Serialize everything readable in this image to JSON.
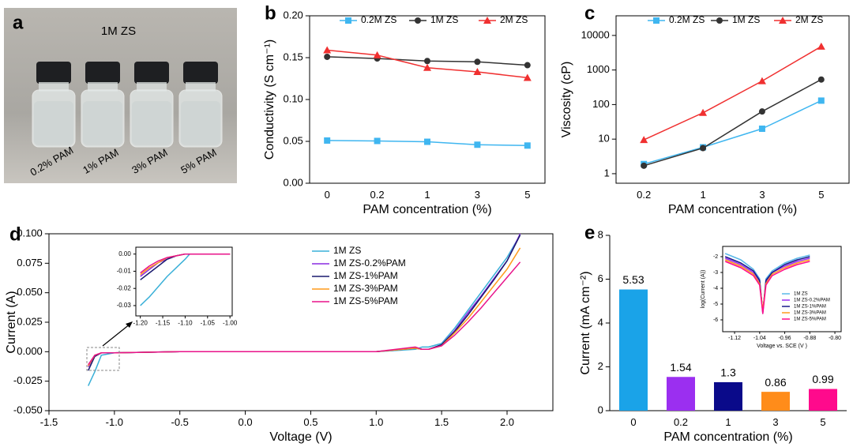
{
  "chart_data": [
    {
      "type": "photo",
      "panel_label": "a",
      "title": "1M ZS",
      "labels": [
        "0.2% PAM",
        "1% PAM",
        "3% PAM",
        "5% PAM"
      ]
    },
    {
      "type": "line",
      "panel_label": "b",
      "xlabel": "PAM concentration (%)",
      "ylabel": "Conductivity (S cm⁻¹)",
      "categories": [
        "0",
        "0.2",
        "1",
        "3",
        "5"
      ],
      "ylim": [
        0,
        0.2
      ],
      "yticks": [
        {
          "value": 0,
          "label": "0.00"
        },
        {
          "value": 0.05,
          "label": "0.05"
        },
        {
          "value": 0.1,
          "label": "0.10"
        },
        {
          "value": 0.15,
          "label": "0.15"
        },
        {
          "value": 0.2,
          "label": "0.20"
        }
      ],
      "series": [
        {
          "name": "0.2M ZS",
          "color": "#3fb6f0",
          "marker": "square",
          "values": [
            0.051,
            0.0505,
            0.0495,
            0.046,
            0.045
          ]
        },
        {
          "name": "1M ZS",
          "color": "#333333",
          "marker": "circle",
          "values": [
            0.151,
            0.149,
            0.146,
            0.145,
            0.141
          ]
        },
        {
          "name": "2M ZS",
          "color": "#f03030",
          "marker": "triangle",
          "values": [
            0.159,
            0.153,
            0.138,
            0.133,
            0.126
          ]
        }
      ]
    },
    {
      "type": "line",
      "panel_label": "c",
      "xlabel": "PAM concentration (%)",
      "ylabel": "Viscosity (cP)",
      "log_y": true,
      "categories": [
        "0.2",
        "1",
        "3",
        "5"
      ],
      "ylim": [
        0.53,
        37000
      ],
      "yticks": [
        1,
        10,
        100,
        1000,
        10000
      ],
      "series": [
        {
          "name": "0.2M ZS",
          "color": "#3fb6f0",
          "marker": "square",
          "values": [
            1.9,
            5.8,
            20,
            130
          ]
        },
        {
          "name": "1M ZS",
          "color": "#333333",
          "marker": "circle",
          "values": [
            1.7,
            5.5,
            63,
            530
          ]
        },
        {
          "name": "2M ZS",
          "color": "#f03030",
          "marker": "triangle",
          "values": [
            9.5,
            58,
            480,
            4800
          ]
        }
      ]
    },
    {
      "type": "line",
      "panel_label": "d",
      "xlabel": "Voltage (V)",
      "ylabel": "Current (A)",
      "xlim": [
        -1.5,
        2.35
      ],
      "xticks": [
        -1.5,
        {
          "value": -1,
          "label": "-1.0"
        },
        -0.5,
        {
          "value": 0,
          "label": "0.0"
        },
        0.5,
        {
          "value": 1,
          "label": "1.0"
        },
        1.5,
        {
          "value": 2,
          "label": "2.0"
        }
      ],
      "ylim": [
        -0.05,
        0.1
      ],
      "yticks": [
        {
          "value": -0.05,
          "label": "-0.050"
        },
        {
          "value": -0.025,
          "label": "-0.025"
        },
        {
          "value": 0,
          "label": "0.000"
        },
        {
          "value": 0.025,
          "label": "0.025"
        },
        {
          "value": 0.05,
          "label": "0.050"
        },
        {
          "value": 0.075,
          "label": "0.075"
        },
        {
          "value": 0.1,
          "label": "0.100"
        }
      ],
      "x": [
        -1.2,
        -1.15,
        -1.1,
        -1.0,
        -0.5,
        0,
        0.5,
        1.0,
        1.3,
        1.35,
        1.4,
        1.5,
        1.6,
        1.7,
        1.8,
        1.9,
        2.0,
        2.1
      ],
      "series": [
        {
          "name": "1M ZS",
          "color": "#3ab0d8",
          "values": [
            -0.029,
            -0.017,
            -0.003,
            -0.001,
            0,
            0,
            0,
            0,
            0.002,
            0.004,
            0.004,
            0.007,
            0.02,
            0.035,
            0.05,
            0.065,
            0.08,
            0.099
          ]
        },
        {
          "name": "1M ZS-0.2%PAM",
          "color": "#8a2be2",
          "values": [
            -0.013,
            -0.003,
            -0.001,
            -0.001,
            0,
            0,
            0,
            0,
            0.003,
            0.002,
            0.002,
            0.006,
            0.018,
            0.033,
            0.047,
            0.062,
            0.077,
            0.1
          ]
        },
        {
          "name": "1M ZS-1%PAM",
          "color": "#1a1a6e",
          "values": [
            -0.016,
            -0.004,
            -0.001,
            -0.001,
            0,
            0,
            0,
            0,
            0.003,
            0.002,
            0.002,
            0.006,
            0.017,
            0.031,
            0.046,
            0.061,
            0.077,
            0.099
          ]
        },
        {
          "name": "1M ZS-3%PAM",
          "color": "#ff9a1a",
          "values": [
            -0.012,
            -0.003,
            -0.001,
            -0.001,
            0,
            0,
            0,
            0,
            0.003,
            0.002,
            0.002,
            0.005,
            0.016,
            0.028,
            0.042,
            0.056,
            0.07,
            0.088
          ]
        },
        {
          "name": "1M ZS-5%PAM",
          "color": "#e8138a",
          "values": [
            -0.011,
            -0.003,
            -0.001,
            -0.001,
            0,
            0,
            0,
            0,
            0.004,
            0.002,
            0.002,
            0.005,
            0.014,
            0.025,
            0.037,
            0.05,
            0.063,
            0.076
          ]
        }
      ]
    },
    {
      "type": "line",
      "xlim": [
        -1.21,
        -0.995
      ],
      "xticks": [
        {
          "value": -1.2,
          "label": "-1.20"
        },
        -1.15,
        {
          "value": -1.1,
          "label": "-1.10"
        },
        -1.05,
        {
          "value": -1,
          "label": "-1.00"
        }
      ],
      "ylim": [
        -0.036,
        0.004
      ],
      "yticks": [
        {
          "value": 0,
          "label": "0.00"
        },
        -0.01,
        -0.02,
        -0.03
      ],
      "x": [
        -1.2,
        -1.18,
        -1.16,
        -1.14,
        -1.12,
        -1.1,
        -1.09,
        -1.05,
        -1.0
      ],
      "series": [
        {
          "color": "#3ab0d8",
          "values": [
            -0.03,
            -0.025,
            -0.019,
            -0.013,
            -0.008,
            -0.003,
            0,
            0,
            0
          ]
        },
        {
          "color": "#8a2be2",
          "values": [
            -0.013,
            -0.009,
            -0.005,
            -0.003,
            -0.001,
            0,
            0,
            0,
            0
          ]
        },
        {
          "color": "#1a1a6e",
          "values": [
            -0.015,
            -0.011,
            -0.007,
            -0.003,
            -0.001,
            0,
            0,
            0,
            0
          ]
        },
        {
          "color": "#ff9a1a",
          "values": [
            -0.012,
            -0.008,
            -0.005,
            -0.002,
            -0.001,
            0,
            0,
            0,
            0
          ]
        },
        {
          "color": "#e8138a",
          "values": [
            -0.011,
            -0.007,
            -0.004,
            -0.002,
            -0.001,
            0,
            0,
            0,
            0
          ]
        }
      ]
    },
    {
      "type": "bar",
      "panel_label": "e",
      "xlabel": "PAM concentration  (%)",
      "ylabel": "Current (mA cm⁻²)",
      "categories": [
        "0",
        "0.2",
        "1",
        "3",
        "5"
      ],
      "values": [
        5.53,
        1.54,
        1.3,
        0.86,
        0.99
      ],
      "colors": [
        "#1aa3e8",
        "#9b2ff0",
        "#0a0a8a",
        "#ff8c1a",
        "#ff0a8c"
      ],
      "ylim": [
        0,
        8
      ],
      "yticks": [
        0,
        2,
        4,
        6,
        8
      ]
    },
    {
      "type": "line",
      "xlabel": "Voltage vs. SCE (V )",
      "ylabel": "log(Current (A))",
      "xlim": [
        -1.158,
        -0.78
      ],
      "xticks": [
        -1.12,
        -1.04,
        -0.96,
        -0.88,
        {
          "value": -0.8,
          "label": "-0.80"
        }
      ],
      "ylim": [
        -6.75,
        -1.35
      ],
      "yticks": [
        -2,
        -3,
        -4,
        -5,
        -6
      ],
      "x": [
        -1.15,
        -1.1,
        -1.06,
        -1.04,
        -1.03,
        -1.02,
        -1.0,
        -0.96,
        -0.92,
        -0.88
      ],
      "series": [
        {
          "name": "1M ZS",
          "color": "#5ab8e8",
          "values": [
            -1.8,
            -2.2,
            -2.8,
            -3.4,
            -5.6,
            -3.4,
            -2.9,
            -2.4,
            -2.1,
            -1.9
          ]
        },
        {
          "name": "1M ZS-0.2%PAM",
          "color": "#9b2ff0",
          "values": [
            -2.1,
            -2.5,
            -3.0,
            -3.6,
            -5.5,
            -3.6,
            -3.0,
            -2.6,
            -2.3,
            -2.1
          ]
        },
        {
          "name": "1M ZS-1%PAM",
          "color": "#1a1a8a",
          "values": [
            -2.0,
            -2.4,
            -2.9,
            -3.5,
            -5.5,
            -3.5,
            -3.0,
            -2.5,
            -2.2,
            -2.0
          ]
        },
        {
          "name": "1M ZS-3%PAM",
          "color": "#ff9a1a",
          "values": [
            -2.2,
            -2.6,
            -3.1,
            -3.7,
            -5.4,
            -3.7,
            -3.1,
            -2.7,
            -2.4,
            -2.2
          ]
        },
        {
          "name": "1M ZS-5%PAM",
          "color": "#ff0a8c",
          "values": [
            -2.3,
            -2.7,
            -3.2,
            -3.8,
            -5.6,
            -3.8,
            -3.2,
            -2.8,
            -2.5,
            -2.3
          ]
        }
      ]
    }
  ]
}
